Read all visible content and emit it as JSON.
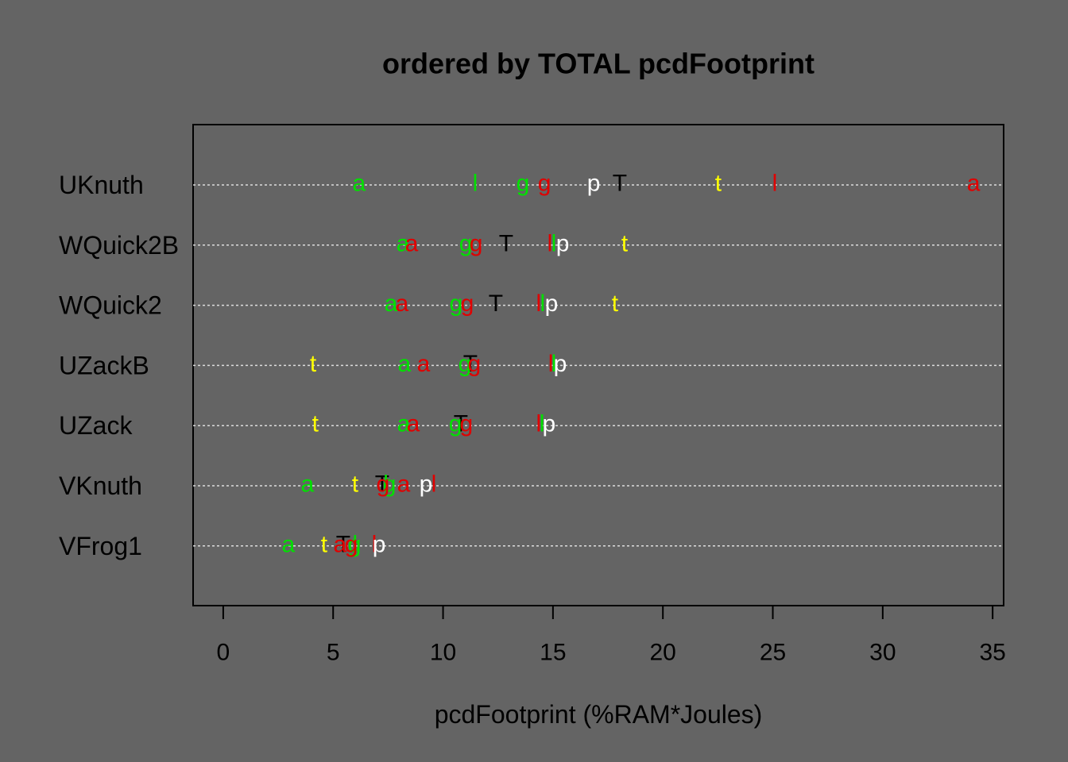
{
  "chart_data": {
    "type": "dotchart",
    "title": "ordered by TOTAL pcdFootprint",
    "x_label": "pcdFootprint (%RAM*Joules)",
    "categories": [
      "UKnuth",
      "WQuick2B",
      "WQuick2",
      "UZackB",
      "UZack",
      "VKnuth",
      "VFrog1"
    ],
    "xlim": [
      -1.37,
      35.5
    ],
    "xticks": [
      0,
      5,
      10,
      15,
      20,
      25,
      30,
      35
    ],
    "grid": true,
    "series": [
      {
        "symbol": "a",
        "color": "#00e000",
        "values": [
          6.18,
          8.17,
          7.63,
          8.24,
          8.21,
          3.83,
          2.96
        ]
      },
      {
        "symbol": "t",
        "color": "#ffff00",
        "values": [
          22.52,
          18.26,
          17.82,
          4.09,
          4.19,
          6.0,
          4.59
        ]
      },
      {
        "symbol": "T",
        "color": "#000000",
        "values": [
          18.04,
          12.87,
          12.4,
          11.24,
          10.81,
          7.23,
          5.46
        ]
      },
      {
        "symbol": "a",
        "color": "#e00000",
        "values": [
          34.13,
          8.57,
          8.13,
          9.11,
          8.64,
          8.21,
          5.31
        ]
      },
      {
        "symbol": "l",
        "color": "#00e000",
        "values": [
          11.46,
          15.04,
          14.53,
          15.04,
          14.5,
          7.4,
          6.0
        ]
      },
      {
        "symbol": "l",
        "color": "#e00000",
        "values": [
          25.09,
          14.86,
          14.35,
          14.9,
          14.35,
          9.58,
          6.87
        ]
      },
      {
        "symbol": "g",
        "color": "#00e000",
        "values": [
          13.63,
          11.03,
          10.59,
          10.99,
          10.56,
          7.56,
          5.97
        ]
      },
      {
        "symbol": "g",
        "color": "#e00000",
        "values": [
          14.61,
          11.5,
          11.1,
          11.42,
          11.06,
          7.27,
          5.82
        ]
      },
      {
        "symbol": "p",
        "color": "#ffffff",
        "values": [
          16.85,
          15.44,
          14.93,
          15.33,
          14.82,
          9.22,
          7.09
        ]
      }
    ]
  }
}
